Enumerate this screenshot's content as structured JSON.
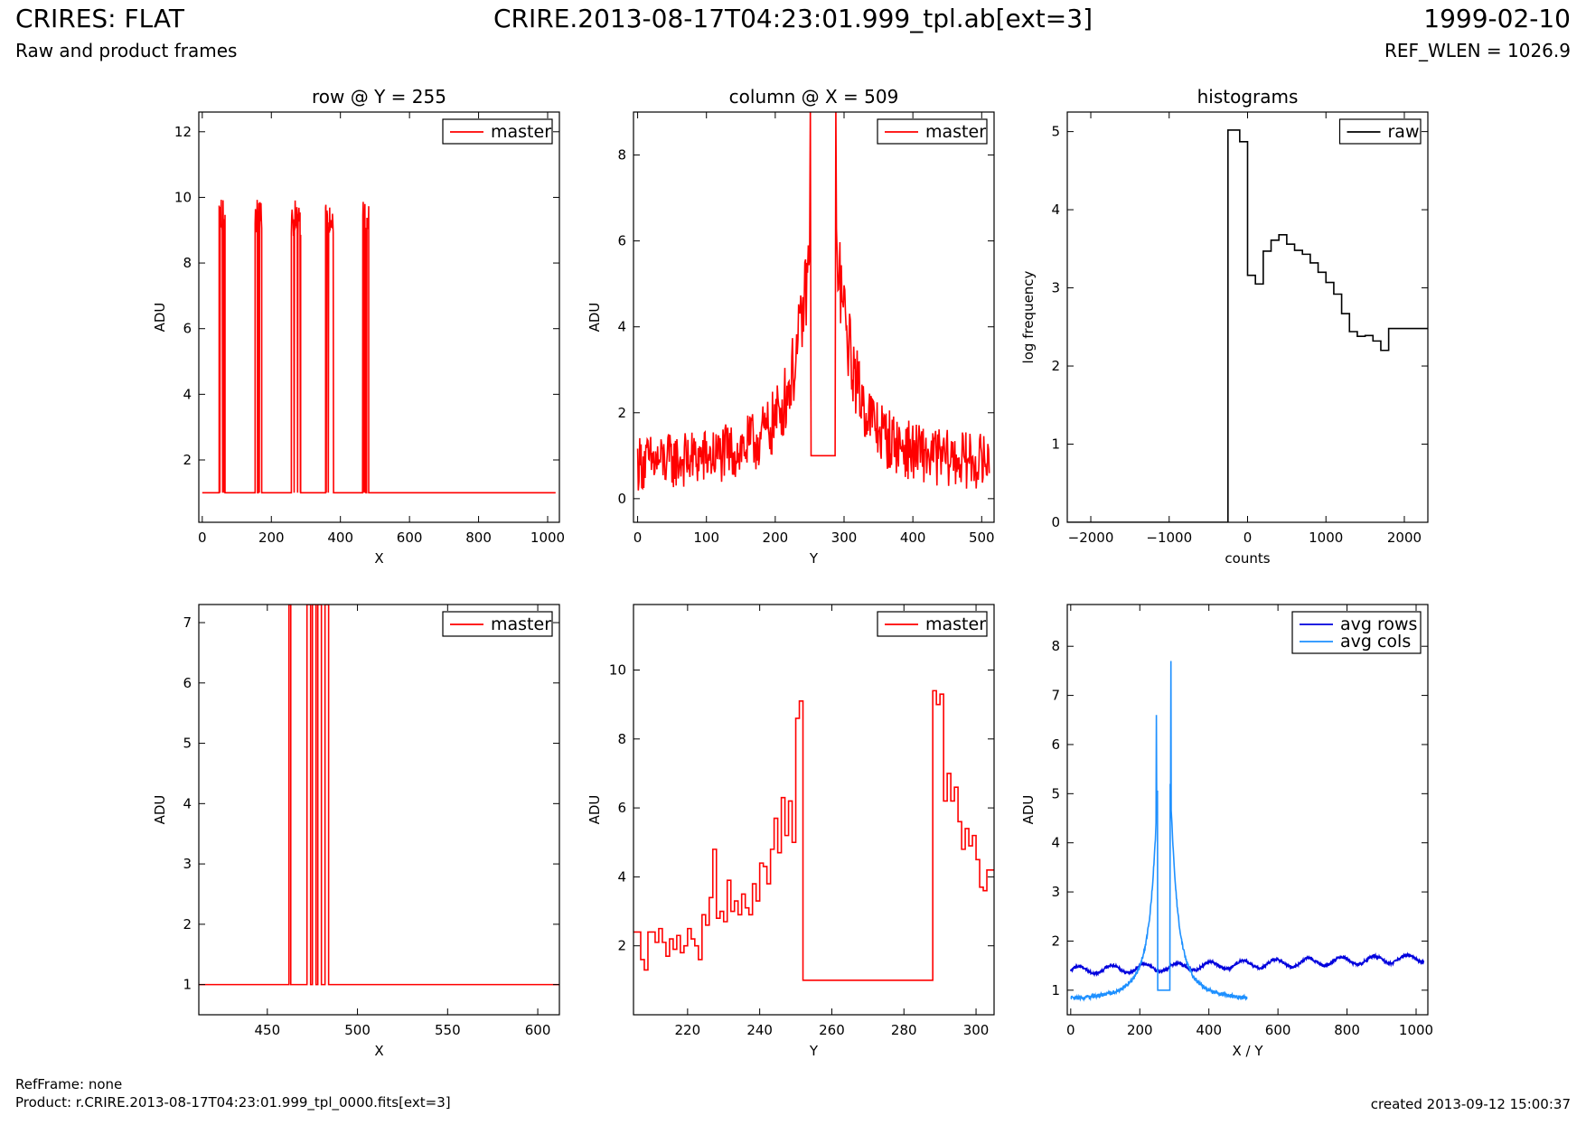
{
  "header": {
    "title_left": "CRIRES: FLAT",
    "subtitle_left": "Raw and product frames",
    "title_center": "CRIRE.2013-08-17T04:23:01.999_tpl.ab[ext=3]",
    "title_right": "1999-02-10",
    "subtitle_right": "REF_WLEN = 1026.9"
  },
  "footer": {
    "refframe": "RefFrame: none",
    "product": "Product: r.CRIRE.2013-08-17T04:23:01.999_tpl_0000.fits[ext=3]",
    "created": "created 2013-09-12 15:00:37"
  },
  "colors": {
    "master": "#ff0000",
    "raw": "#000000",
    "avg_rows": "#0000dd",
    "avg_cols": "#1e90ff"
  },
  "chart_data": [
    {
      "id": "row",
      "type": "line",
      "title": "row @ Y = 255",
      "xlabel": "X",
      "ylabel": "ADU",
      "xlim": [
        -10,
        1034
      ],
      "ylim": [
        0.1,
        12.6
      ],
      "xticks": [
        0,
        200,
        400,
        600,
        800,
        1000
      ],
      "yticks": [
        2,
        4,
        6,
        8,
        10,
        12
      ],
      "legend": "top-right",
      "series": [
        {
          "name": "master",
          "color": "#ff0000",
          "style": "spikes",
          "baseline": 1,
          "spike_ranges": [
            [
              49,
              66
            ],
            [
              153,
              172
            ],
            [
              258,
              285
            ],
            [
              357,
              380
            ],
            [
              461,
              482
            ]
          ],
          "spike_max": 10
        }
      ]
    },
    {
      "id": "col",
      "type": "line",
      "title": "column @ X = 509",
      "xlabel": "Y",
      "ylabel": "ADU",
      "xlim": [
        -6,
        518
      ],
      "ylim": [
        -0.55,
        9.0
      ],
      "xticks": [
        0,
        100,
        200,
        300,
        400,
        500
      ],
      "yticks": [
        0,
        2,
        4,
        6,
        8
      ],
      "legend": "top-right",
      "series": [
        {
          "name": "master",
          "color": "#ff0000",
          "style": "noisy_peak",
          "n": 512,
          "base": 0.75,
          "noise": 0.8,
          "peak_center": 270,
          "peak_amp": 7.2,
          "peak_width": 35,
          "flat_range": [
            252,
            287
          ],
          "flat_value": 1
        }
      ]
    },
    {
      "id": "hist",
      "type": "step",
      "title": "histograms",
      "xlabel": "counts",
      "ylabel": "log frequency",
      "xlim": [
        -2300,
        2300
      ],
      "ylim": [
        0,
        5.25
      ],
      "xticks": [
        -2000,
        -1000,
        0,
        1000,
        2000
      ],
      "yticks": [
        0,
        1,
        2,
        3,
        4,
        5
      ],
      "legend": "top-right",
      "series": [
        {
          "name": "raw",
          "color": "#000000",
          "edges": [
            -2300,
            -250,
            -100,
            0,
            100,
            200,
            300,
            400,
            500,
            600,
            700,
            800,
            900,
            1000,
            1100,
            1200,
            1300,
            1400,
            1500,
            1600,
            1700,
            1800,
            1900,
            2000,
            2100,
            2300
          ],
          "values": [
            0,
            5.02,
            4.87,
            3.16,
            3.05,
            3.47,
            3.61,
            3.68,
            3.56,
            3.48,
            3.43,
            3.32,
            3.2,
            3.07,
            2.92,
            2.67,
            2.44,
            2.38,
            2.39,
            2.32,
            2.2,
            2.48,
            2.48,
            2.48,
            2.48
          ]
        }
      ]
    },
    {
      "id": "row-zoom",
      "type": "line",
      "title": "",
      "xlabel": "X",
      "ylabel": "ADU",
      "xlim": [
        412,
        612
      ],
      "ylim": [
        0.5,
        7.3
      ],
      "xticks": [
        450,
        500,
        550,
        600
      ],
      "yticks": [
        1,
        2,
        3,
        4,
        5,
        6,
        7
      ],
      "legend": "top-right",
      "series": [
        {
          "name": "master",
          "color": "#ff0000",
          "style": "steps",
          "points": [
            [
              412,
              1
            ],
            [
              462,
              1
            ],
            [
              462,
              7.3
            ],
            [
              463,
              7.3
            ],
            [
              463,
              1
            ],
            [
              472,
              1
            ],
            [
              472,
              7.3
            ],
            [
              474,
              7.3
            ],
            [
              474,
              1
            ],
            [
              475,
              1
            ],
            [
              475,
              7.3
            ],
            [
              477,
              7.3
            ],
            [
              477,
              1
            ],
            [
              478,
              1
            ],
            [
              478,
              7.3
            ],
            [
              480,
              7.3
            ],
            [
              480,
              1
            ],
            [
              482,
              1
            ],
            [
              482,
              7.3
            ],
            [
              484,
              7.3
            ],
            [
              484,
              1
            ],
            [
              612,
              1
            ]
          ]
        }
      ]
    },
    {
      "id": "col-zoom",
      "type": "line",
      "title": "",
      "xlabel": "Y",
      "ylabel": "ADU",
      "xlim": [
        205,
        305
      ],
      "ylim": [
        0,
        11.9
      ],
      "xticks": [
        220,
        240,
        260,
        280,
        300
      ],
      "yticks": [
        2,
        4,
        6,
        8,
        10
      ],
      "legend": "top-right",
      "series": [
        {
          "name": "master",
          "color": "#ff0000",
          "style": "steps",
          "points": [
            [
              205,
              2.4
            ],
            [
              207,
              1.6
            ],
            [
              208,
              1.3
            ],
            [
              209,
              2.4
            ],
            [
              211,
              2.1
            ],
            [
              212,
              2.5
            ],
            [
              213,
              2.1
            ],
            [
              214,
              1.7
            ],
            [
              215,
              2.2
            ],
            [
              216,
              1.9
            ],
            [
              217,
              2.3
            ],
            [
              218,
              1.8
            ],
            [
              219,
              2.0
            ],
            [
              220,
              2.5
            ],
            [
              221,
              2.2
            ],
            [
              222,
              2.0
            ],
            [
              223,
              1.6
            ],
            [
              224,
              2.9
            ],
            [
              225,
              2.6
            ],
            [
              226,
              3.4
            ],
            [
              227,
              4.8
            ],
            [
              228,
              2.8
            ],
            [
              229,
              3.0
            ],
            [
              230,
              2.7
            ],
            [
              231,
              3.9
            ],
            [
              232,
              3.0
            ],
            [
              233,
              3.3
            ],
            [
              234,
              2.9
            ],
            [
              235,
              3.5
            ],
            [
              236,
              3.1
            ],
            [
              237,
              2.9
            ],
            [
              238,
              3.8
            ],
            [
              239,
              3.3
            ],
            [
              240,
              4.4
            ],
            [
              241,
              4.3
            ],
            [
              242,
              3.8
            ],
            [
              243,
              4.8
            ],
            [
              244,
              5.7
            ],
            [
              245,
              4.7
            ],
            [
              246,
              6.3
            ],
            [
              247,
              5.2
            ],
            [
              248,
              6.2
            ],
            [
              249,
              5.0
            ],
            [
              250,
              8.6
            ],
            [
              251,
              9.1
            ],
            [
              252,
              1.0
            ],
            [
              287,
              1.0
            ],
            [
              288,
              9.4
            ],
            [
              289,
              9.0
            ],
            [
              290,
              9.3
            ],
            [
              291,
              6.2
            ],
            [
              292,
              7.0
            ],
            [
              293,
              6.2
            ],
            [
              294,
              6.6
            ],
            [
              295,
              5.6
            ],
            [
              296,
              4.8
            ],
            [
              297,
              5.4
            ],
            [
              298,
              4.9
            ],
            [
              299,
              5.2
            ],
            [
              300,
              4.5
            ],
            [
              301,
              3.7
            ],
            [
              302,
              3.6
            ],
            [
              303,
              4.2
            ],
            [
              305,
              4.2
            ]
          ]
        }
      ]
    },
    {
      "id": "avg",
      "type": "line",
      "title": "",
      "xlabel": "X / Y",
      "ylabel": "ADU",
      "xlim": [
        -10,
        1034
      ],
      "ylim": [
        0.5,
        8.85
      ],
      "xticks": [
        0,
        200,
        400,
        600,
        800,
        1000
      ],
      "yticks": [
        1,
        2,
        3,
        4,
        5,
        6,
        7,
        8
      ],
      "legend": "top-right",
      "series": [
        {
          "name": "avg rows",
          "color": "#0000dd",
          "style": "wave",
          "n": 1024,
          "base": 1.4,
          "amp": 0.08,
          "trend": 0.25,
          "period": 95
        },
        {
          "name": "avg cols",
          "color": "#1e90ff",
          "style": "peak",
          "n": 512,
          "base": 0.78,
          "peak_center": 270,
          "peak_amp": 7.0,
          "peak_width": 28,
          "flat_range": [
            252,
            287
          ],
          "flat_value": 1,
          "inner_peaks": [
            [
              248,
              6.6
            ],
            [
              290,
              7.7
            ]
          ]
        }
      ]
    }
  ]
}
